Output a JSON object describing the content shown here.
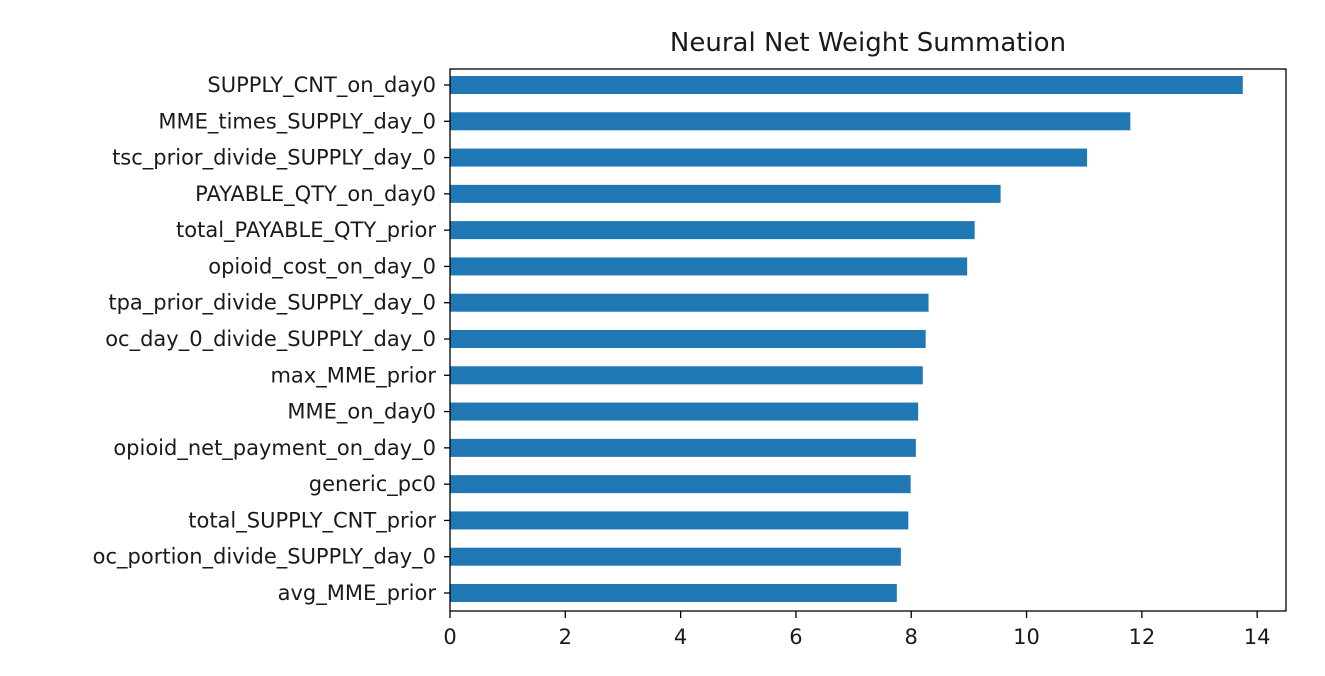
{
  "chart_data": {
    "type": "bar",
    "orientation": "horizontal",
    "title": "Neural Net Weight Summation",
    "xlabel": "",
    "ylabel": "",
    "xlim": [
      0,
      14.5
    ],
    "xticks": [
      0,
      2,
      4,
      6,
      8,
      10,
      12,
      14
    ],
    "grid": false,
    "bar_color": "#1f77b4",
    "categories": [
      "SUPPLY_CNT_on_day0",
      "MME_times_SUPPLY_day_0",
      "tsc_prior_divide_SUPPLY_day_0",
      "PAYABLE_QTY_on_day0",
      "total_PAYABLE_QTY_prior",
      "opioid_cost_on_day_0",
      "tpa_prior_divide_SUPPLY_day_0",
      "oc_day_0_divide_SUPPLY_day_0",
      "max_MME_prior",
      "MME_on_day0",
      "opioid_net_payment_on_day_0",
      "generic_pc0",
      "total_SUPPLY_CNT_prior",
      "oc_portion_divide_SUPPLY_day_0",
      "avg_MME_prior"
    ],
    "values": [
      13.75,
      11.8,
      11.05,
      9.55,
      9.1,
      8.97,
      8.3,
      8.25,
      8.2,
      8.12,
      8.08,
      7.99,
      7.95,
      7.82,
      7.75
    ]
  }
}
